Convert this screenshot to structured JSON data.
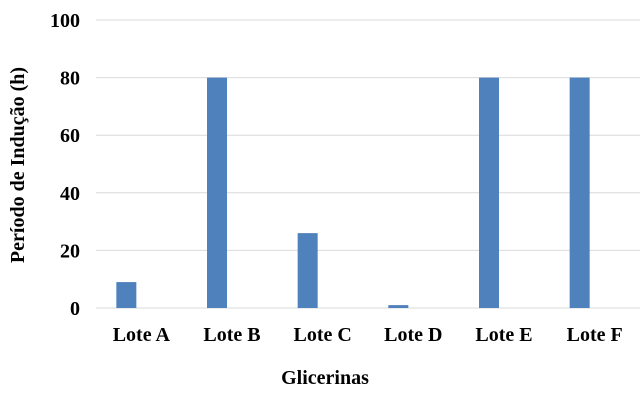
{
  "chart_data": {
    "type": "bar",
    "categories": [
      "Lote A",
      "Lote B",
      "Lote C",
      "Lote D",
      "Lote E",
      "Lote F"
    ],
    "values": [
      9,
      80,
      26,
      1,
      80,
      80
    ],
    "title": "",
    "xlabel": "Glicerinas",
    "ylabel": "Período de Indução (h)",
    "ylim": [
      0,
      100
    ],
    "yticks": [
      "0",
      "20",
      "40",
      "60",
      "80",
      "100"
    ],
    "grid": true,
    "legend": "none",
    "bar_color": "#4f81bd",
    "grid_color": "#d9d9d9"
  }
}
